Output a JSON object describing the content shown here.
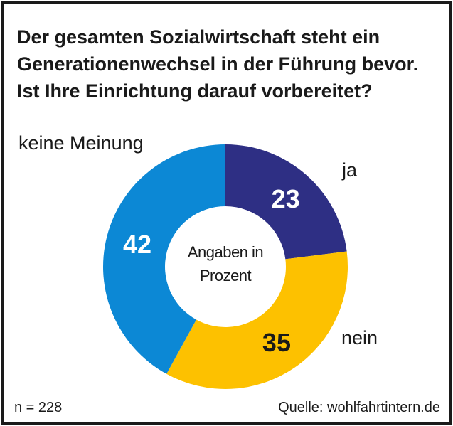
{
  "chart_data": {
    "type": "donut",
    "title_lines": [
      "Der gesamten Sozialwirtschaft steht ein",
      "Generationenwechsel in der Führung bevor.",
      "Ist Ihre Einrichtung darauf vorbereitet?"
    ],
    "center_label_lines": [
      "Angaben in",
      "Prozent"
    ],
    "unit": "%",
    "slices": [
      {
        "label": "ja",
        "value": 23,
        "color": "#2e2f84",
        "value_color": "#ffffff"
      },
      {
        "label": "nein",
        "value": 35,
        "color": "#fdc100",
        "value_color": "#1a1a1a"
      },
      {
        "label": "keine Meinung",
        "value": 42,
        "color": "#0c88d5",
        "value_color": "#ffffff"
      }
    ]
  },
  "footer": {
    "n": "n = 228",
    "source": "Quelle: wohlfahrtintern.de"
  }
}
